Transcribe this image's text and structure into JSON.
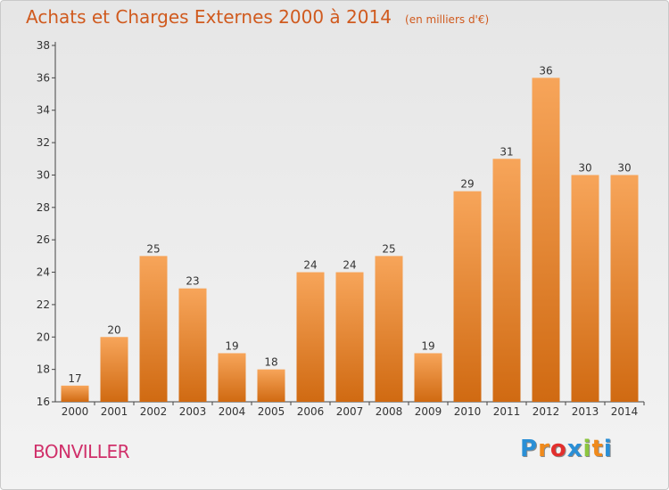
{
  "header": {
    "title": "Achats et Charges Externes 2000 à 2014",
    "subtitle": "(en milliers d'€)"
  },
  "footer": {
    "commune": "BONVILLER",
    "logo_letters": [
      "P",
      "r",
      "o",
      "x",
      "i",
      "t",
      "i"
    ],
    "logo_colors": [
      "#2a8fd6",
      "#f08a1c",
      "#e2302e",
      "#2a8fd6",
      "#8cc63f",
      "#f08a1c",
      "#2a8fd6"
    ]
  },
  "chart_data": {
    "type": "bar",
    "title": "Achats et Charges Externes 2000 à 2014",
    "subtitle": "(en milliers d'€)",
    "xlabel": "",
    "ylabel": "",
    "categories": [
      "2000",
      "2001",
      "2002",
      "2003",
      "2004",
      "2005",
      "2006",
      "2007",
      "2008",
      "2009",
      "2010",
      "2011",
      "2012",
      "2013",
      "2014"
    ],
    "values": [
      17,
      20,
      25,
      23,
      19,
      18,
      24,
      24,
      25,
      19,
      29,
      31,
      36,
      30,
      30
    ],
    "ylim": [
      16,
      38
    ],
    "yticks": [
      16,
      18,
      20,
      22,
      24,
      26,
      28,
      30,
      32,
      34,
      36,
      38
    ],
    "grid": false,
    "bar_color": "#f08f3a",
    "bar_color_dark": "#d46e12"
  }
}
